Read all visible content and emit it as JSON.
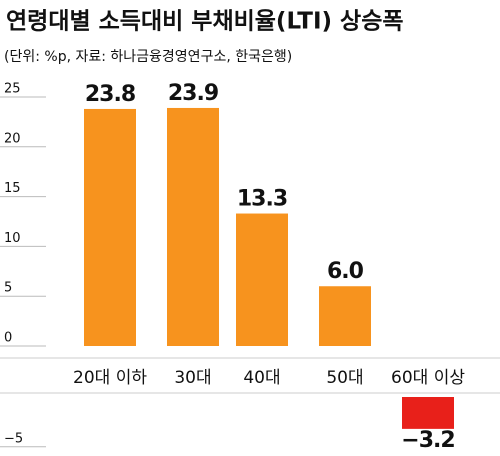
{
  "chart_data": {
    "type": "bar",
    "title": "연령대별 소득대비 부채비율(LTI) 상승폭",
    "subtitle": "(단위: %p, 자료: 하나금융경영연구소, 한국은행)",
    "categories": [
      "20대 이하",
      "30대",
      "40대",
      "50대",
      "60대 이상"
    ],
    "values": [
      23.8,
      23.9,
      13.3,
      6,
      -3.2
    ],
    "value_labels": [
      "23.8",
      "23.9",
      "13.3",
      "6.0",
      "−3.2"
    ],
    "colors": [
      "#f7931e",
      "#f7931e",
      "#f7931e",
      "#f7931e",
      "#e8201a"
    ],
    "ylim": [
      -5.5,
      26
    ],
    "yticks": [
      {
        "value": -5,
        "label": "−5"
      },
      0,
      5,
      10,
      15,
      20,
      25
    ]
  }
}
